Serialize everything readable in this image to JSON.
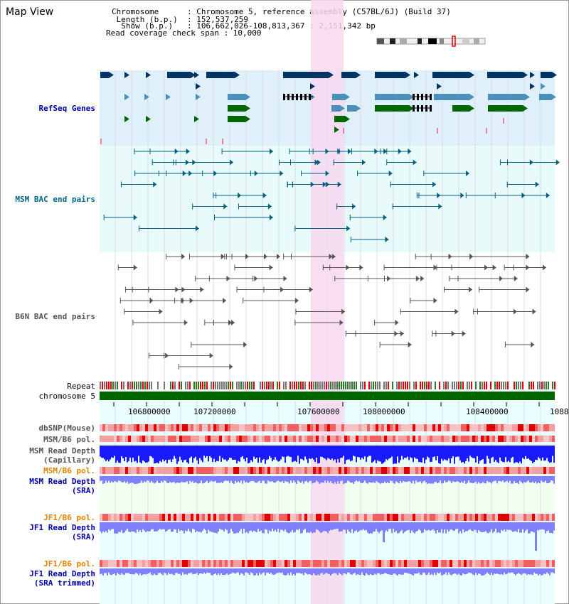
{
  "window": {
    "title": "Map View"
  },
  "header": {
    "rows": [
      "Chromosome      : Chromosome 5, reference assembly (C57BL/6J) (Build 37)",
      " Length (b.p.)  : 152,537,259",
      "  Show (b.p.)   : 106,662,026-108,813,367 : 2,151,342 bp",
      "Read coverage check span : 10,000"
    ]
  },
  "tracks": {
    "refseq": "RefSeq Genes",
    "msm_bac": "MSM BAC end pairs",
    "b6n_bac": "B6N BAC end pairs",
    "repeat": "Repeat",
    "chromosome": "chromosome 5",
    "dbsnp": "dbSNP(Mouse)",
    "msm_b6_pol_1": "MSM/B6 pol.",
    "msm_depth_cap_1": "MSM Read Depth",
    "msm_depth_cap_2": "(Capillary)",
    "msm_b6_pol_2": "MSM/B6 pol.",
    "msm_depth_sra_1": "MSM Read Depth",
    "msm_depth_sra_2": "(SRA)",
    "jf1_pol_1": "JF1/B6 pol.",
    "jf1_depth_1": "JF1 Read Depth",
    "jf1_depth_2": "(SRA)",
    "jf1_pol_2": "JF1/B6 pol.",
    "jf1_trim_1": "JF1 Read Depth",
    "jf1_trim_2": "(SRA trimmed)"
  },
  "axis": {
    "ticks": [
      "106800000",
      "107200000",
      "107600000",
      "108000000",
      "108400000",
      "1088"
    ]
  },
  "colors": {
    "refseq_bg": "#e0f0fa",
    "bac_bg": "#e8fafa",
    "highlight": "#f8d8f0",
    "gene_dark": "#003366",
    "gene_mid": "#4a90b8",
    "gene_green": "#006600",
    "msm_bac": "#006080",
    "b6n_bac": "#555555",
    "chromosome": "#006600",
    "depth_cap": "#1a1aff",
    "depth_sra": "#8080ff",
    "label_blue": "#0000aa",
    "label_orange": "#e08000",
    "label_teal": "#006688"
  }
}
